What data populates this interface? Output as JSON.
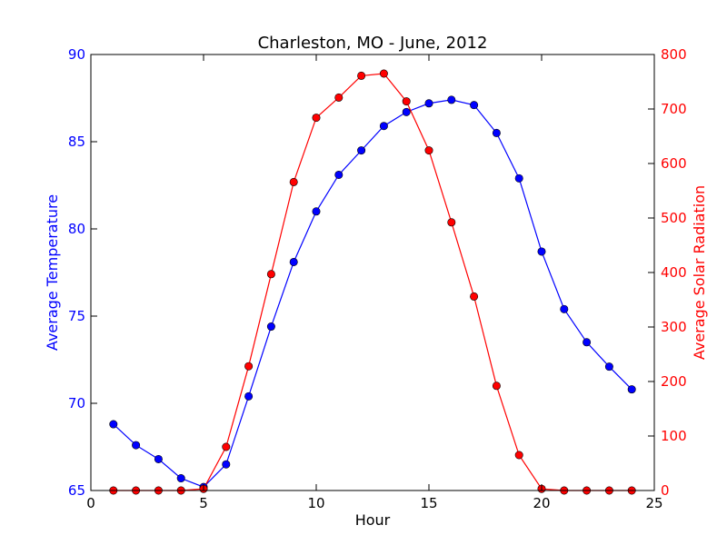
{
  "chart_data": {
    "type": "line",
    "title": "Charleston, MO - June, 2012",
    "xlabel": "Hour",
    "ylabel_left": "Average Temperature",
    "ylabel_right": "Average Solar Radiation",
    "xlim": [
      0,
      25
    ],
    "ylim_left": [
      65,
      90
    ],
    "ylim_right": [
      0,
      800
    ],
    "x_ticks": [
      0,
      5,
      10,
      15,
      20,
      25
    ],
    "y_left_ticks": [
      65,
      70,
      75,
      80,
      85,
      90
    ],
    "y_right_ticks": [
      0,
      100,
      200,
      300,
      400,
      500,
      600,
      700,
      800
    ],
    "grid": false,
    "x": [
      1,
      2,
      3,
      4,
      5,
      6,
      7,
      8,
      9,
      10,
      11,
      12,
      13,
      14,
      15,
      16,
      17,
      18,
      19,
      20,
      21,
      22,
      23,
      24
    ],
    "series": [
      {
        "axis": "left",
        "color": "#0000ff",
        "values": [
          68.8,
          67.6,
          66.8,
          65.7,
          65.2,
          66.5,
          70.4,
          74.4,
          78.1,
          81.0,
          83.1,
          84.5,
          85.9,
          86.7,
          87.2,
          87.4,
          87.1,
          85.5,
          82.9,
          78.7,
          75.4,
          73.5,
          72.1,
          70.8
        ]
      },
      {
        "axis": "right",
        "color": "#ff0000",
        "values": [
          0,
          0,
          0,
          0,
          3,
          80,
          228,
          397,
          566,
          684,
          721,
          761,
          765,
          714,
          624,
          492,
          356,
          192,
          65,
          3,
          0,
          0,
          0,
          0
        ]
      }
    ]
  }
}
